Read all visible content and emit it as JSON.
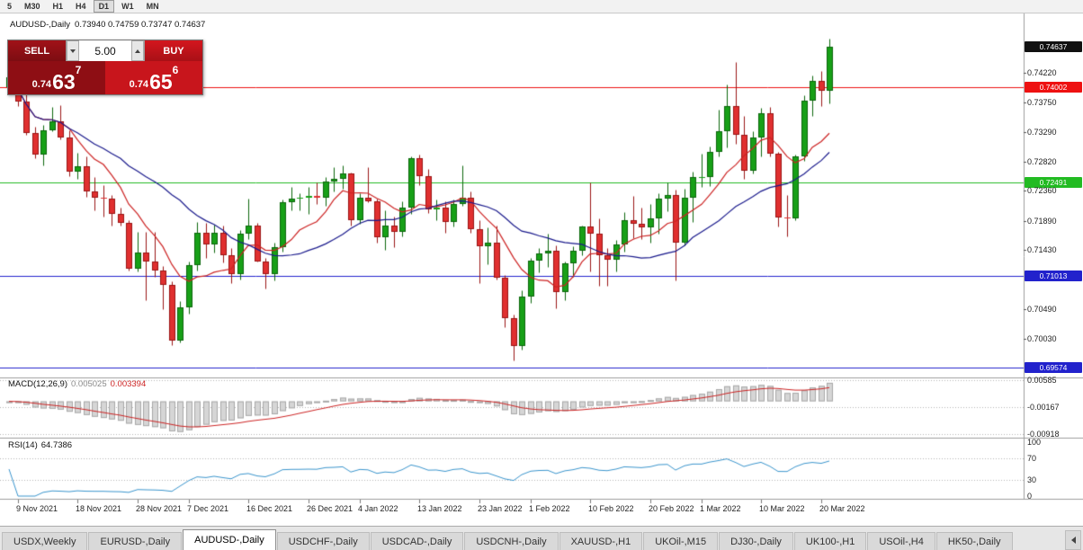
{
  "toolbar": {
    "timeframes": [
      "5",
      "M30",
      "H1",
      "H4",
      "D1",
      "W1",
      "MN"
    ],
    "active_index": 4
  },
  "trade_panel": {
    "sell_label": "SELL",
    "buy_label": "BUY",
    "volume": "5.00",
    "sell_price": {
      "prefix": "0.74",
      "big": "63",
      "sup": "7"
    },
    "buy_price": {
      "prefix": "0.74",
      "big": "65",
      "sup": "6"
    },
    "sell_color": "#8e0e14",
    "buy_color": "#c8151c"
  },
  "tabs": {
    "items": [
      "USDX,Weekly",
      "EURUSD-,Daily",
      "AUDUSD-,Daily",
      "USDCHF-,Daily",
      "USDCAD-,Daily",
      "USDCNH-,Daily",
      "XAUUSD-,H1",
      "UKOil-,M15",
      "DJ30-,Daily",
      "UK100-,H1",
      "USOil-,H4",
      "HK50-,Daily"
    ],
    "active_index": 2
  },
  "chart_data": {
    "type": "candlestick",
    "title": "AUDUSD-,Daily",
    "ohlc_text": "0.73940 0.74759 0.73747 0.74637",
    "last_ohlc": {
      "open": "0.73940",
      "high": "0.74759",
      "low": "0.73747",
      "close": "0.74637"
    },
    "price_axis": {
      "top": 0.7516,
      "bottom": 0.69417,
      "ticks": [
        "0.74220",
        "0.73750",
        "0.73290",
        "0.72820",
        "0.72360",
        "0.71890",
        "0.71430",
        "0.70490",
        "0.70030"
      ]
    },
    "bid_marker": {
      "price": 0.74637,
      "label": "0.74637",
      "color": "#111111"
    },
    "h_lines": [
      {
        "price": 0.74002,
        "label": "0.74002",
        "color": "#ee1111"
      },
      {
        "price": 0.72491,
        "label": "0.72491",
        "color": "#22bb22"
      },
      {
        "price": 0.71013,
        "label": "0.71013",
        "color": "#2222cc"
      },
      {
        "price": 0.69574,
        "label": "0.69574",
        "color": "#2222cc"
      }
    ],
    "moving_averages": [
      {
        "period": 8,
        "color": "#cc2222"
      },
      {
        "period": 21,
        "color": "#1a1a8c"
      }
    ],
    "colors": {
      "up": "#17a017",
      "up_border": "#0b660b",
      "down": "#e03030",
      "down_border": "#9a1414"
    },
    "candles": [
      [
        0.74,
        0.7432,
        0.7395,
        0.7416
      ],
      [
        0.7416,
        0.7437,
        0.737,
        0.7377
      ],
      [
        0.7377,
        0.7395,
        0.7324,
        0.7327
      ],
      [
        0.7327,
        0.7337,
        0.7287,
        0.7293
      ],
      [
        0.7293,
        0.734,
        0.7277,
        0.7331
      ],
      [
        0.7331,
        0.7368,
        0.733,
        0.7346
      ],
      [
        0.7346,
        0.7372,
        0.7317,
        0.732
      ],
      [
        0.732,
        0.7332,
        0.7259,
        0.7266
      ],
      [
        0.7266,
        0.7296,
        0.7255,
        0.7275
      ],
      [
        0.7275,
        0.729,
        0.7227,
        0.7235
      ],
      [
        0.7235,
        0.7258,
        0.7205,
        0.7225
      ],
      [
        0.7225,
        0.7245,
        0.7196,
        0.7224
      ],
      [
        0.7224,
        0.723,
        0.7182,
        0.72
      ],
      [
        0.72,
        0.721,
        0.7181,
        0.7186
      ],
      [
        0.7186,
        0.719,
        0.711,
        0.7113
      ],
      [
        0.7113,
        0.7172,
        0.7109,
        0.7139
      ],
      [
        0.7139,
        0.7171,
        0.7063,
        0.7124
      ],
      [
        0.7124,
        0.7172,
        0.71,
        0.7111
      ],
      [
        0.7111,
        0.7117,
        0.7049,
        0.7088
      ],
      [
        0.7088,
        0.7093,
        0.6993,
        0.7
      ],
      [
        0.7,
        0.7062,
        0.6997,
        0.7052
      ],
      [
        0.7052,
        0.7124,
        0.7042,
        0.7119
      ],
      [
        0.7119,
        0.7187,
        0.711,
        0.717
      ],
      [
        0.717,
        0.7185,
        0.713,
        0.7152
      ],
      [
        0.7152,
        0.7183,
        0.7139,
        0.717
      ],
      [
        0.717,
        0.7181,
        0.7123,
        0.7135
      ],
      [
        0.7135,
        0.7146,
        0.709,
        0.7105
      ],
      [
        0.7105,
        0.7174,
        0.7096,
        0.7168
      ],
      [
        0.7168,
        0.7224,
        0.716,
        0.7181
      ],
      [
        0.7181,
        0.7186,
        0.7124,
        0.7125
      ],
      [
        0.7125,
        0.7131,
        0.7082,
        0.7105
      ],
      [
        0.7105,
        0.7154,
        0.7095,
        0.7148
      ],
      [
        0.7148,
        0.7222,
        0.714,
        0.7218
      ],
      [
        0.7218,
        0.7242,
        0.7205,
        0.7224
      ],
      [
        0.7224,
        0.7233,
        0.7205,
        0.7225
      ],
      [
        0.7225,
        0.7243,
        0.72,
        0.7228
      ],
      [
        0.7228,
        0.725,
        0.7216,
        0.7226
      ],
      [
        0.7226,
        0.7258,
        0.7212,
        0.7251
      ],
      [
        0.7251,
        0.7273,
        0.7235,
        0.7255
      ],
      [
        0.7255,
        0.7277,
        0.724,
        0.7263
      ],
      [
        0.7263,
        0.7265,
        0.7181,
        0.719
      ],
      [
        0.719,
        0.7232,
        0.7184,
        0.7226
      ],
      [
        0.7226,
        0.7274,
        0.7218,
        0.722
      ],
      [
        0.722,
        0.7224,
        0.7155,
        0.7163
      ],
      [
        0.7163,
        0.7206,
        0.7143,
        0.7181
      ],
      [
        0.7181,
        0.7195,
        0.7147,
        0.7171
      ],
      [
        0.7171,
        0.722,
        0.7164,
        0.7209
      ],
      [
        0.7209,
        0.7291,
        0.72,
        0.7287
      ],
      [
        0.7287,
        0.7293,
        0.7245,
        0.726
      ],
      [
        0.726,
        0.727,
        0.7201,
        0.7207
      ],
      [
        0.7207,
        0.7223,
        0.719,
        0.721
      ],
      [
        0.721,
        0.7219,
        0.717,
        0.7187
      ],
      [
        0.7187,
        0.7223,
        0.718,
        0.7215
      ],
      [
        0.7215,
        0.7276,
        0.7212,
        0.7225
      ],
      [
        0.7225,
        0.7235,
        0.717,
        0.7175
      ],
      [
        0.7175,
        0.719,
        0.709,
        0.7149
      ],
      [
        0.7149,
        0.7178,
        0.712,
        0.7155
      ],
      [
        0.7155,
        0.7181,
        0.7096,
        0.7099
      ],
      [
        0.7099,
        0.7104,
        0.7021,
        0.7035
      ],
      [
        0.7035,
        0.7041,
        0.6968,
        0.6991
      ],
      [
        0.6991,
        0.7079,
        0.6985,
        0.7069
      ],
      [
        0.7069,
        0.713,
        0.706,
        0.7126
      ],
      [
        0.7126,
        0.7146,
        0.7108,
        0.7138
      ],
      [
        0.7138,
        0.7168,
        0.7116,
        0.7141
      ],
      [
        0.7141,
        0.715,
        0.7051,
        0.7076
      ],
      [
        0.7076,
        0.7125,
        0.7063,
        0.7122
      ],
      [
        0.7122,
        0.7149,
        0.7101,
        0.7141
      ],
      [
        0.7141,
        0.7182,
        0.7135,
        0.718
      ],
      [
        0.718,
        0.7249,
        0.7109,
        0.7169
      ],
      [
        0.7169,
        0.7193,
        0.7087,
        0.7135
      ],
      [
        0.7135,
        0.7146,
        0.7086,
        0.7127
      ],
      [
        0.7127,
        0.7158,
        0.7109,
        0.7152
      ],
      [
        0.7152,
        0.7202,
        0.714,
        0.719
      ],
      [
        0.719,
        0.7228,
        0.7162,
        0.7184
      ],
      [
        0.7184,
        0.721,
        0.716,
        0.7178
      ],
      [
        0.7178,
        0.7215,
        0.7155,
        0.7192
      ],
      [
        0.7192,
        0.7233,
        0.7168,
        0.7224
      ],
      [
        0.7224,
        0.7249,
        0.7204,
        0.7229
      ],
      [
        0.7229,
        0.7238,
        0.7095,
        0.7155
      ],
      [
        0.7155,
        0.724,
        0.715,
        0.7225
      ],
      [
        0.7225,
        0.7267,
        0.7187,
        0.7258
      ],
      [
        0.7258,
        0.7295,
        0.7242,
        0.7258
      ],
      [
        0.7258,
        0.7306,
        0.7244,
        0.7297
      ],
      [
        0.7297,
        0.7364,
        0.7291,
        0.733
      ],
      [
        0.733,
        0.7404,
        0.7305,
        0.737
      ],
      [
        0.737,
        0.744,
        0.731,
        0.7325
      ],
      [
        0.7325,
        0.7355,
        0.7255,
        0.7268
      ],
      [
        0.7268,
        0.733,
        0.7264,
        0.732
      ],
      [
        0.732,
        0.7367,
        0.729,
        0.7359
      ],
      [
        0.7359,
        0.7368,
        0.729,
        0.7295
      ],
      [
        0.7295,
        0.7297,
        0.718,
        0.7194
      ],
      [
        0.7194,
        0.7229,
        0.7165,
        0.7192
      ],
      [
        0.7192,
        0.7293,
        0.719,
        0.729
      ],
      [
        0.729,
        0.7387,
        0.7283,
        0.7378
      ],
      [
        0.7378,
        0.7418,
        0.7355,
        0.741
      ],
      [
        0.741,
        0.7425,
        0.737,
        0.7394
      ],
      [
        0.7394,
        0.74759,
        0.73747,
        0.74637
      ]
    ],
    "x_labels": [
      {
        "i": 1,
        "t": "9 Nov 2021"
      },
      {
        "i": 8,
        "t": "18 Nov 2021"
      },
      {
        "i": 15,
        "t": "28 Nov 2021"
      },
      {
        "i": 21,
        "t": "7 Dec 2021"
      },
      {
        "i": 28,
        "t": "16 Dec 2021"
      },
      {
        "i": 35,
        "t": "26 Dec 2021"
      },
      {
        "i": 41,
        "t": "4 Jan 2022"
      },
      {
        "i": 48,
        "t": "13 Jan 2022"
      },
      {
        "i": 55,
        "t": "23 Jan 2022"
      },
      {
        "i": 61,
        "t": "1 Feb 2022"
      },
      {
        "i": 68,
        "t": "10 Feb 2022"
      },
      {
        "i": 75,
        "t": "20 Feb 2022"
      },
      {
        "i": 81,
        "t": "1 Mar 2022"
      },
      {
        "i": 88,
        "t": "10 Mar 2022"
      },
      {
        "i": 95,
        "t": "20 Mar 2022"
      }
    ],
    "macd": {
      "label": "MACD(12,26,9)",
      "value_main": "0.005025",
      "value_signal": "0.003394",
      "range": {
        "max": 0.0064,
        "min": -0.0101
      },
      "scale": [
        {
          "v": 0.00585,
          "t": "0.00585"
        },
        {
          "v": -0.00167,
          "t": "-0.00167"
        },
        {
          "v": -0.00918,
          "t": "-0.00918"
        }
      ],
      "bar_color": "#d6d6d6",
      "bar_border": "#a8a8a8",
      "signal_color": "#cc2222"
    },
    "rsi": {
      "label": "RSI(14)",
      "value": "64.7386",
      "range": {
        "max": 105,
        "min": -5
      },
      "scale": [
        {
          "v": 100,
          "t": "100"
        },
        {
          "v": 70,
          "t": "70"
        },
        {
          "v": 30,
          "t": "30"
        },
        {
          "v": 0,
          "t": "0"
        }
      ],
      "levels": [
        70,
        30
      ],
      "line_color": "#3994cc"
    }
  }
}
